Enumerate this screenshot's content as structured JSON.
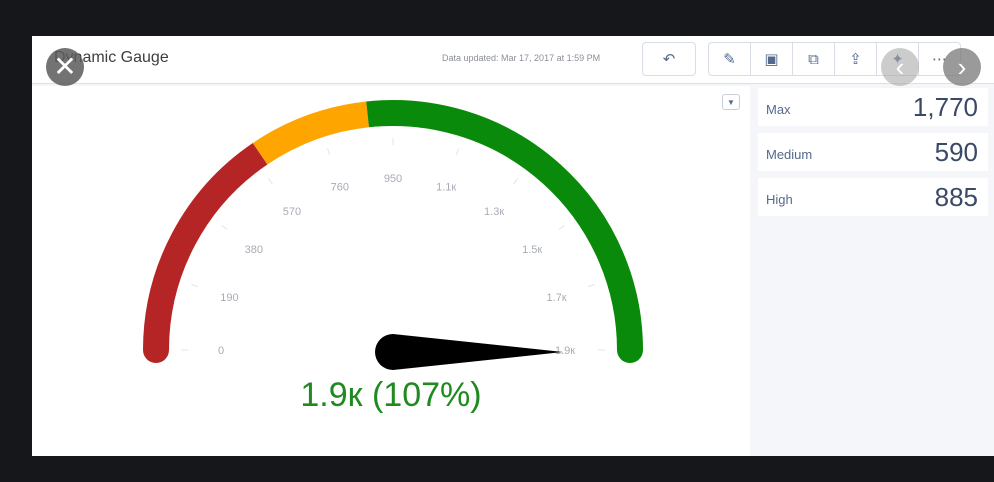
{
  "header": {
    "title": "Dynamic Gauge",
    "updated": "Data updated: Mar 17, 2017 at 1:59 PM"
  },
  "toolbar": [
    {
      "name": "undo-icon",
      "glyph": "↶"
    },
    {
      "name": "pencil-icon",
      "glyph": "✎"
    },
    {
      "name": "save-icon",
      "glyph": "▣"
    },
    {
      "name": "clone-icon",
      "glyph": "⧉"
    },
    {
      "name": "share-icon",
      "glyph": "⇪"
    },
    {
      "name": "pin-icon",
      "glyph": "✦"
    },
    {
      "name": "more-icon",
      "glyph": "⋯"
    }
  ],
  "metrics": [
    {
      "label": "Max",
      "value": "1,770"
    },
    {
      "label": "Medium",
      "value": "590"
    },
    {
      "label": "High",
      "value": "885"
    }
  ],
  "chart_data": {
    "type": "gauge",
    "min": 0,
    "max": 1900,
    "value": 1900,
    "value_label": "1.9к (107%)",
    "ticks": [
      {
        "v": 0,
        "label": "0"
      },
      {
        "v": 190,
        "label": "190"
      },
      {
        "v": 380,
        "label": "380"
      },
      {
        "v": 570,
        "label": "570"
      },
      {
        "v": 760,
        "label": "760"
      },
      {
        "v": 950,
        "label": "950"
      },
      {
        "v": 1140,
        "label": "1.1к"
      },
      {
        "v": 1330,
        "label": "1.3к"
      },
      {
        "v": 1520,
        "label": "1.5к"
      },
      {
        "v": 1710,
        "label": "1.7к"
      },
      {
        "v": 1900,
        "label": "1.9к"
      }
    ],
    "bands": [
      {
        "from": 0,
        "to": 590,
        "color": "#b52525"
      },
      {
        "from": 590,
        "to": 885,
        "color": "#ffa500"
      },
      {
        "from": 885,
        "to": 1900,
        "color": "#0a8a0a"
      }
    ],
    "needle_color": "#000000"
  },
  "viewer": {
    "close": "✕",
    "prev": "‹",
    "next": "›"
  }
}
